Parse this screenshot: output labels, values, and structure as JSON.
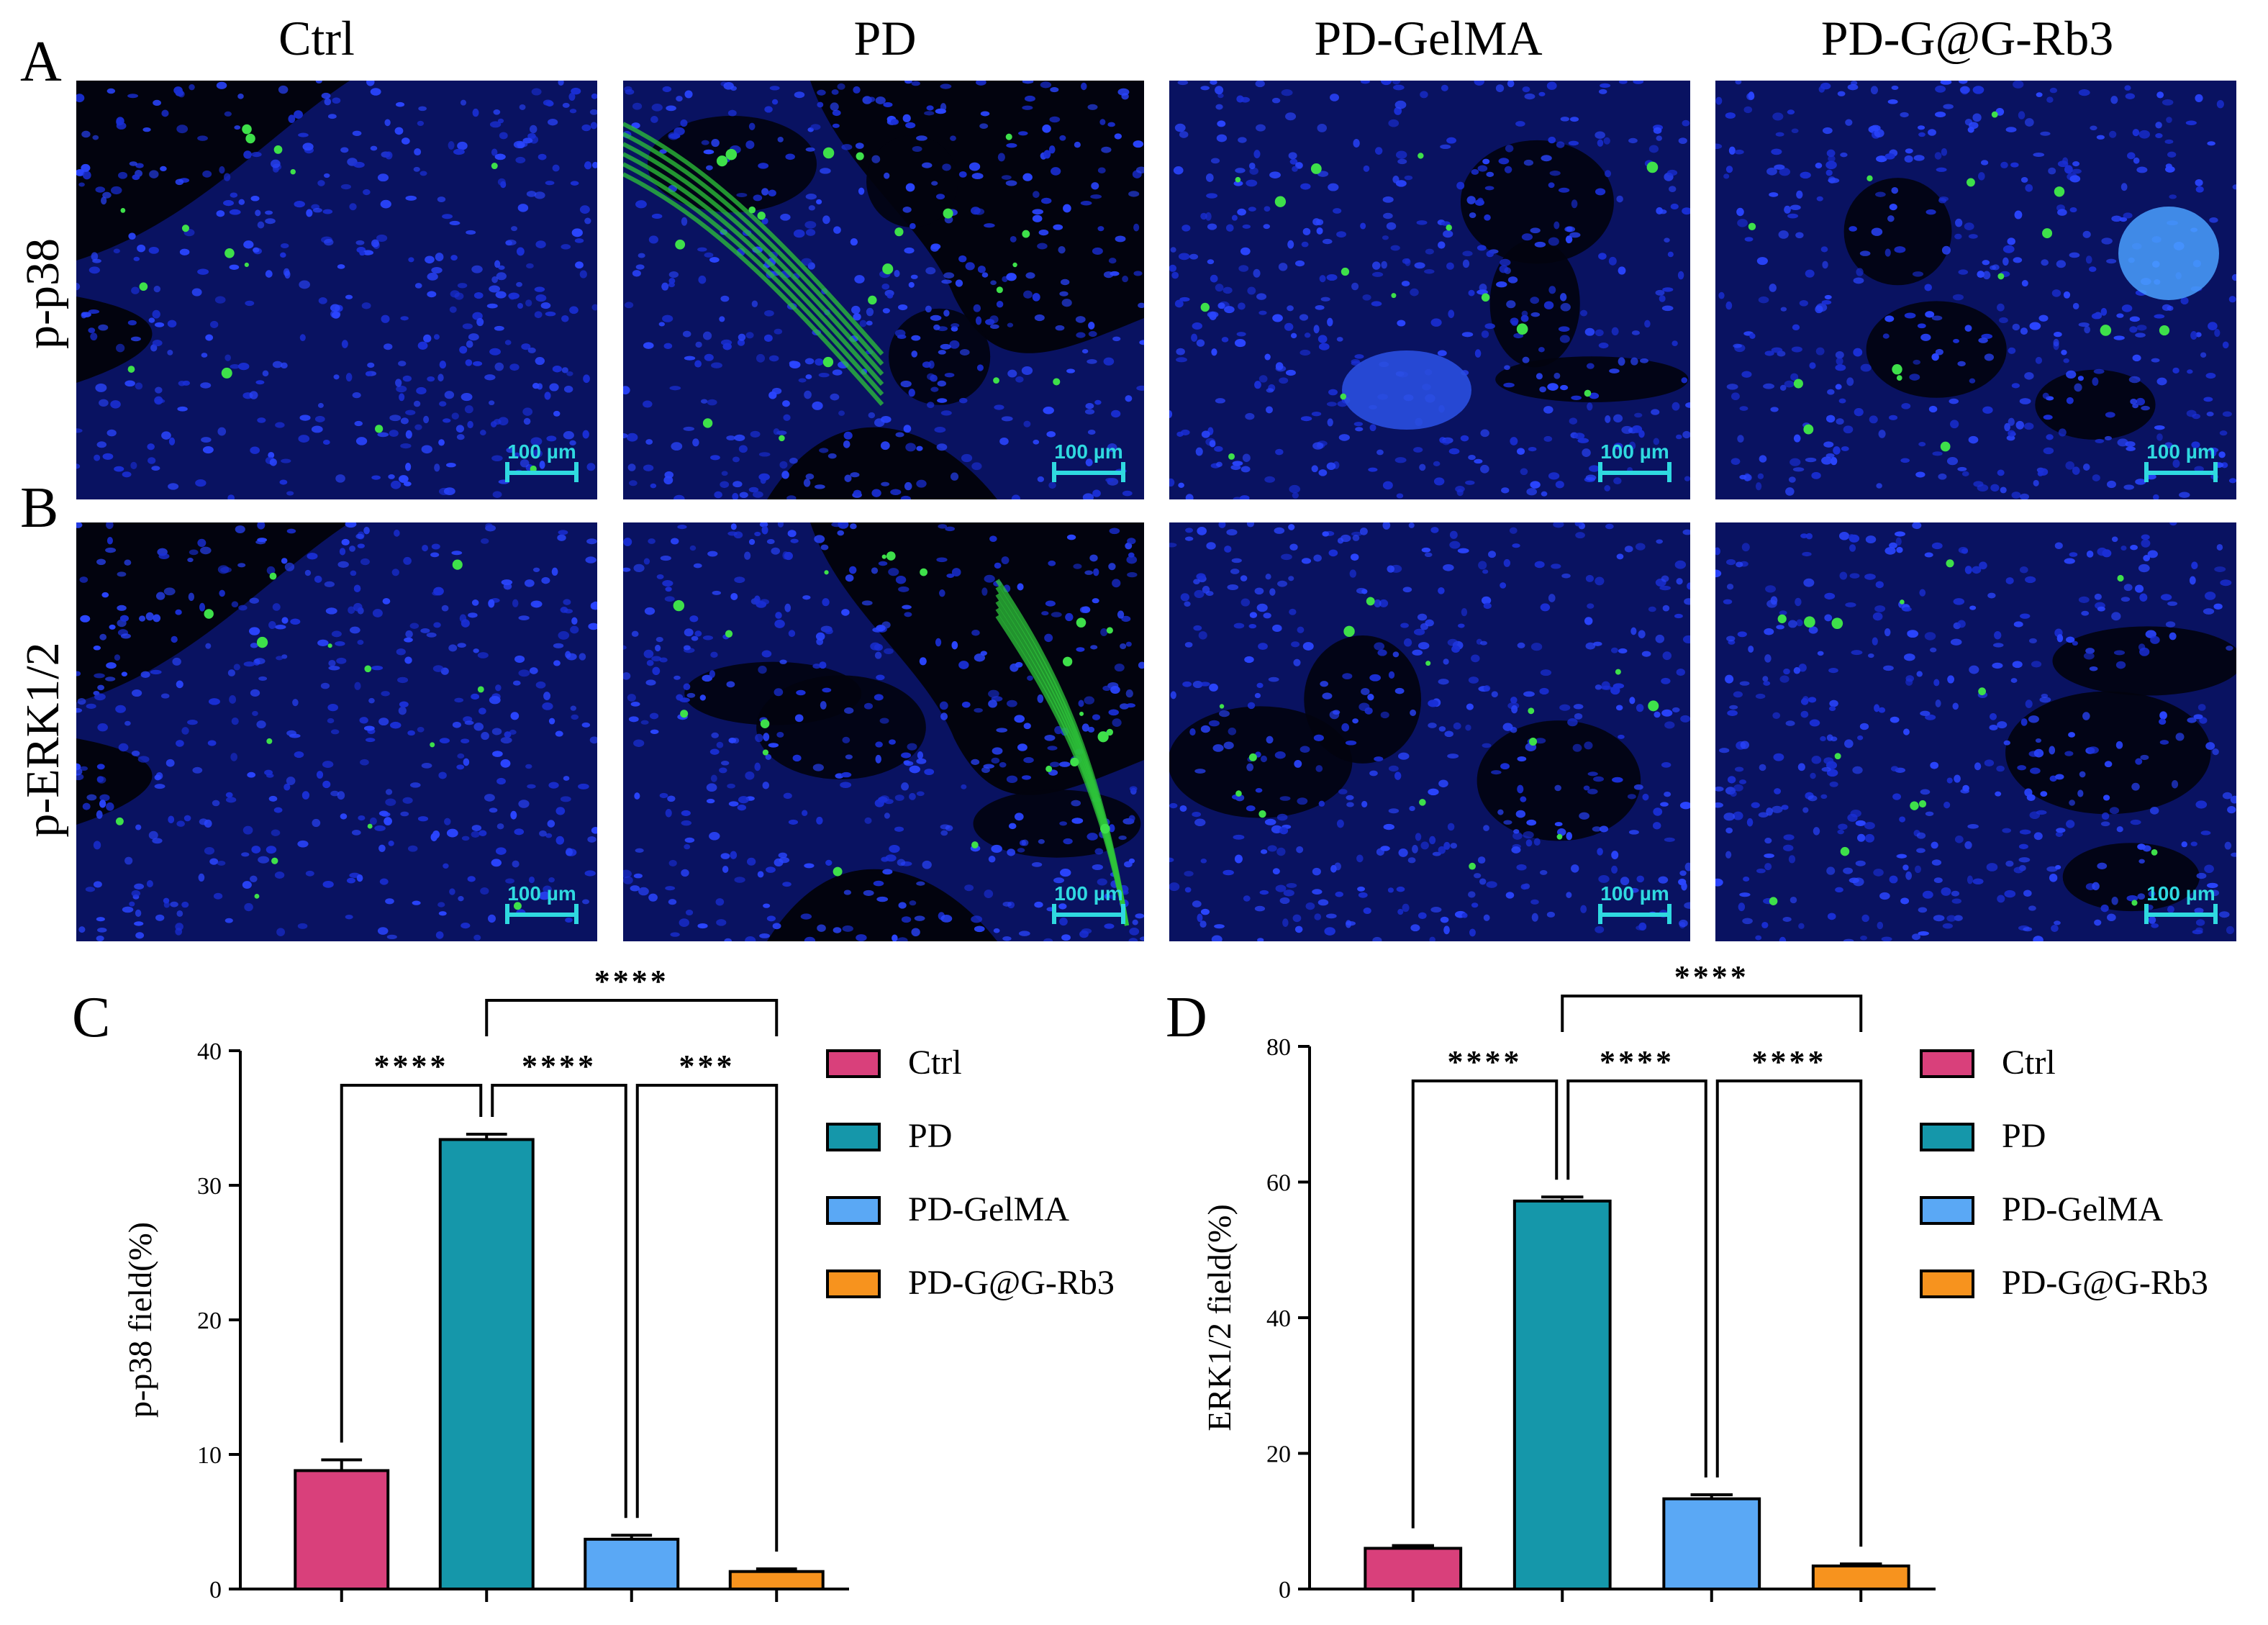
{
  "columns": [
    "Ctrl",
    "PD",
    "PD-GelMA",
    "PD-G@G-Rb3"
  ],
  "rows": [
    {
      "letter": "A",
      "label": "p-p38"
    },
    {
      "letter": "B",
      "label": "p-ERK1/2"
    }
  ],
  "scale_bar_label": "100 µm",
  "colors": {
    "Ctrl": "#d9407b",
    "PD": "#1597aa",
    "PD-GelMA": "#5aa8f5",
    "PD-G@G-Rb3": "#f7931e",
    "nuclei": "#1a2fd6",
    "stain": "#2ec43a",
    "scale": "#2fd9e0"
  },
  "chart_data": [
    {
      "panel": "C",
      "type": "bar",
      "categories": [
        "Ctrl",
        "PD",
        "PD-GelMA",
        "PD-G@G-Rb3"
      ],
      "values": [
        8.8,
        33.4,
        3.7,
        1.3
      ],
      "errors": [
        0.8,
        0.4,
        0.3,
        0.2
      ],
      "ylabel": "p-p38 field(%)",
      "ylim": [
        0,
        40
      ],
      "yticks": [
        0,
        10,
        20,
        30,
        40
      ],
      "legend": [
        "Ctrl",
        "PD",
        "PD-GelMA",
        "PD-G@G-Rb3"
      ],
      "legend_position": "right",
      "significance": [
        {
          "from": 0,
          "to": 1,
          "label": "****",
          "level": 1
        },
        {
          "from": 1,
          "to": 2,
          "label": "****",
          "level": 1
        },
        {
          "from": 2,
          "to": 3,
          "label": "***",
          "level": 1
        },
        {
          "from": 1,
          "to": 3,
          "label": "****",
          "level": 2
        }
      ]
    },
    {
      "panel": "D",
      "type": "bar",
      "categories": [
        "Ctrl",
        "PD",
        "PD-GelMA",
        "PD-G@G-Rb3"
      ],
      "values": [
        6.0,
        57.2,
        13.3,
        3.4
      ],
      "errors": [
        0.4,
        0.6,
        0.6,
        0.3
      ],
      "ylabel": "ERK1/2 field(%)",
      "ylim": [
        0,
        80
      ],
      "yticks": [
        0,
        20,
        40,
        60,
        80
      ],
      "legend": [
        "Ctrl",
        "PD",
        "PD-GelMA",
        "PD-G@G-Rb3"
      ],
      "legend_position": "right",
      "significance": [
        {
          "from": 0,
          "to": 1,
          "label": "****",
          "level": 1
        },
        {
          "from": 1,
          "to": 2,
          "label": "****",
          "level": 1
        },
        {
          "from": 2,
          "to": 3,
          "label": "****",
          "level": 1
        },
        {
          "from": 1,
          "to": 3,
          "label": "****",
          "level": 2
        }
      ]
    }
  ]
}
